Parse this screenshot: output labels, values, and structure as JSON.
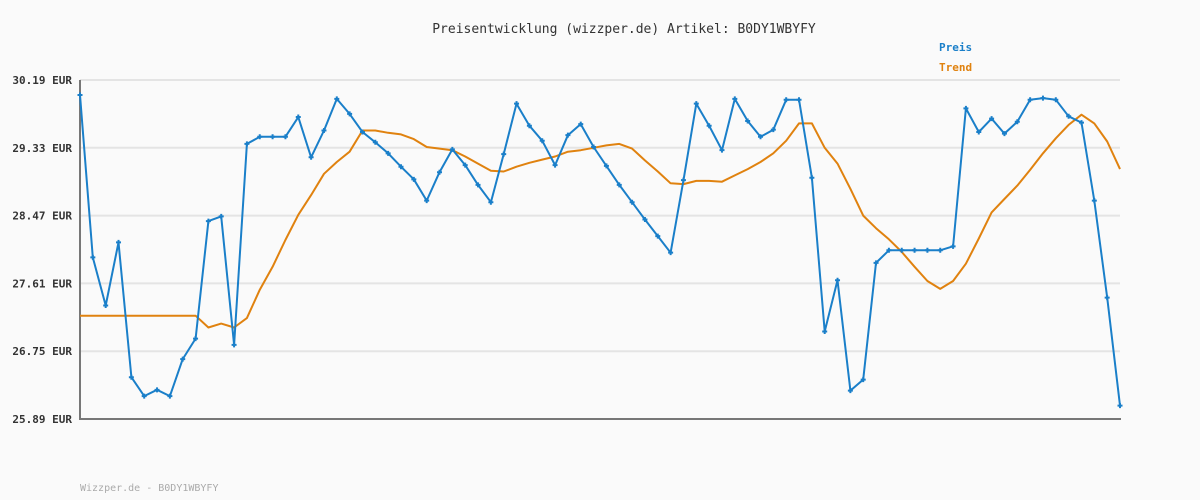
{
  "chart_data": {
    "type": "line",
    "title": "Preisentwicklung (wizzper.de) Artikel: B0DY1WBYFY",
    "xlabel": "",
    "ylabel": "",
    "ylim": [
      25.89,
      30.19
    ],
    "yticks": [
      "25.89 EUR",
      "26.75 EUR",
      "27.61 EUR",
      "28.47 EUR",
      "29.33 EUR",
      "30.19 EUR"
    ],
    "grid": true,
    "legend_placement": "top-right",
    "series": [
      {
        "name": "Preis",
        "color": "#1a7fc9",
        "markers": true,
        "values": [
          30.0,
          27.94,
          27.33,
          28.13,
          26.42,
          26.18,
          26.26,
          26.18,
          26.65,
          26.91,
          28.4,
          28.46,
          26.83,
          29.38,
          29.47,
          29.47,
          29.47,
          29.72,
          29.21,
          29.55,
          29.95,
          29.76,
          29.53,
          29.4,
          29.26,
          29.09,
          28.93,
          28.66,
          29.02,
          29.31,
          29.11,
          28.86,
          28.64,
          29.25,
          29.89,
          29.61,
          29.42,
          29.11,
          29.49,
          29.63,
          29.34,
          29.1,
          28.86,
          28.64,
          28.42,
          28.21,
          28.0,
          28.92,
          29.89,
          29.61,
          29.3,
          29.95,
          29.67,
          29.47,
          29.56,
          29.94,
          29.94,
          28.95,
          27.0,
          27.65,
          26.25,
          26.39,
          27.87,
          28.03,
          28.03,
          28.03,
          28.03,
          28.03,
          28.08,
          29.83,
          29.53,
          29.7,
          29.51,
          29.66,
          29.94,
          29.96,
          29.94,
          29.73,
          29.65,
          28.66,
          27.43,
          26.06
        ]
      },
      {
        "name": "Trend",
        "color": "#e0820f",
        "markers": false,
        "values": [
          27.2,
          27.2,
          27.2,
          27.2,
          27.2,
          27.2,
          27.2,
          27.2,
          27.2,
          27.2,
          27.05,
          27.1,
          27.05,
          27.17,
          27.53,
          27.82,
          28.16,
          28.48,
          28.73,
          29.0,
          29.15,
          29.28,
          29.55,
          29.55,
          29.52,
          29.5,
          29.44,
          29.34,
          29.32,
          29.3,
          29.22,
          29.13,
          29.04,
          29.03,
          29.09,
          29.14,
          29.18,
          29.22,
          29.28,
          29.3,
          29.33,
          29.36,
          29.38,
          29.32,
          29.17,
          29.03,
          28.88,
          28.87,
          28.91,
          28.91,
          28.9,
          28.98,
          29.06,
          29.15,
          29.26,
          29.42,
          29.64,
          29.64,
          29.33,
          29.13,
          28.81,
          28.47,
          28.31,
          28.17,
          28.01,
          27.82,
          27.64,
          27.54,
          27.64,
          27.86,
          28.18,
          28.51,
          28.68,
          28.85,
          29.05,
          29.26,
          29.45,
          29.62,
          29.75,
          29.64,
          29.41,
          29.06
        ]
      }
    ]
  },
  "footer": "Wizzper.de - B0DY1WBYFY"
}
